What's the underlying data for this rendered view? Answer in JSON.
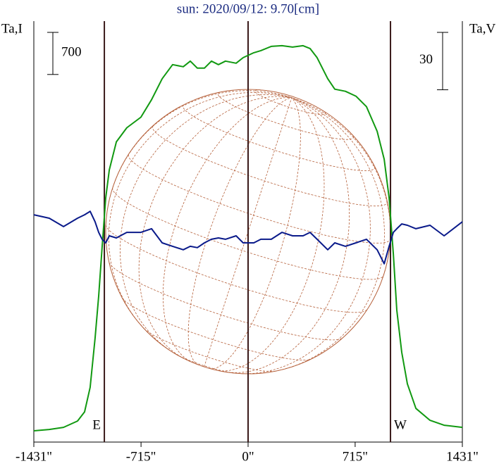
{
  "chart_data": {
    "type": "line",
    "title": "sun: 2020/09/12: 9.70[cm]",
    "y_label": "Ta,I",
    "y2_label": "Ta,V",
    "x": [
      -1431,
      -1328,
      -1233,
      -1139,
      -1092,
      -1055,
      -1022,
      -998,
      -975,
      -951,
      -927,
      -880,
      -810,
      -716,
      -645,
      -574,
      -504,
      -433,
      -386,
      -339,
      -292,
      -245,
      -198,
      -151,
      -80,
      -33,
      38,
      85,
      155,
      226,
      297,
      367,
      414,
      461,
      532,
      579,
      650,
      720,
      791,
      862,
      909,
      942,
      970,
      993,
      1026,
      1064,
      1121,
      1215,
      1309,
      1431
    ],
    "series": [
      {
        "name": "Ta,I",
        "color": "#119911",
        "values": [
          187,
          210,
          245,
          350,
          502,
          910,
          1727,
          2427,
          3243,
          4060,
          4527,
          4993,
          5227,
          5402,
          5693,
          6043,
          6277,
          6242,
          6335,
          6218,
          6218,
          6335,
          6277,
          6335,
          6300,
          6393,
          6475,
          6510,
          6580,
          6592,
          6568,
          6592,
          6545,
          6393,
          6043,
          5868,
          5833,
          5752,
          5577,
          5168,
          4702,
          4060,
          3127,
          2193,
          1493,
          968,
          560,
          362,
          280,
          245
        ]
      },
      {
        "name": "Ta,V",
        "color": "#0a1a8a",
        "axis": "y2",
        "values": [
          8.8,
          7.0,
          2.6,
          7.0,
          8.8,
          10.6,
          5.1,
          -0.4,
          -4.0,
          -5.9,
          -2.2,
          -3.3,
          -0.4,
          -0.4,
          1.5,
          -5.9,
          -7.7,
          -9.5,
          -7.7,
          -8.4,
          -5.9,
          -4.0,
          -3.3,
          -4.0,
          -2.2,
          -5.9,
          -5.9,
          -4.0,
          -4.0,
          -0.4,
          -2.2,
          -2.2,
          -0.4,
          -4.0,
          -9.5,
          -5.9,
          -7.7,
          -5.9,
          -4.0,
          -9.5,
          -16.8,
          -7.7,
          -0.4,
          1.5,
          4.0,
          3.3,
          1.5,
          3.3,
          -2.2,
          5.1
        ]
      }
    ],
    "xlim": [
      -1431,
      1431
    ],
    "xticks": [
      {
        "value": -1431,
        "label": "-1431\""
      },
      {
        "value": -715,
        "label": "-715\""
      },
      {
        "value": 0,
        "label": "0\""
      },
      {
        "value": 715,
        "label": "715\""
      },
      {
        "value": 1431,
        "label": "1431\""
      }
    ],
    "ylim": [
      0,
      7000
    ],
    "y2lim": [
      -110,
      110
    ],
    "scale_bars": [
      {
        "value": 700,
        "axis": "y"
      },
      {
        "value": 30,
        "axis": "y2"
      }
    ],
    "limbs": [
      {
        "label": "E",
        "x": -960
      },
      {
        "label": "W",
        "x": 951
      }
    ],
    "disk_radius": 951
  }
}
